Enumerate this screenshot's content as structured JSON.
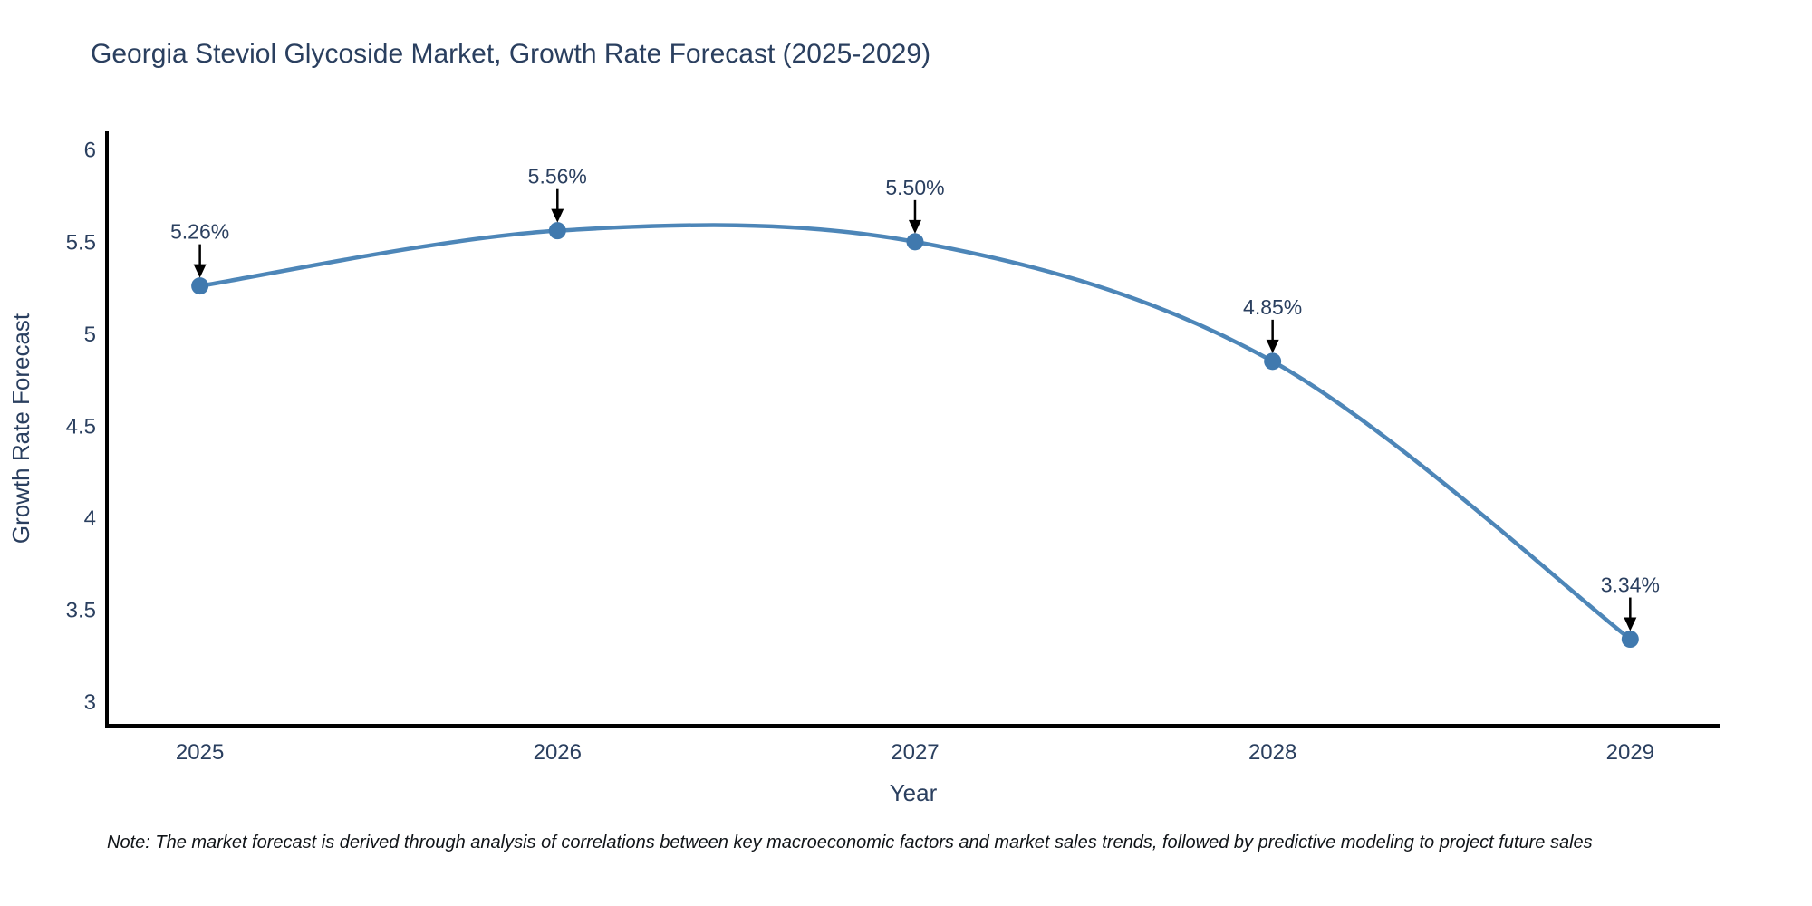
{
  "header": {
    "title": "Georgia Steviol Glycoside Market, Growth Rate Forecast (2025-2029)"
  },
  "footer": {
    "note": "Note: The market forecast is derived through analysis of correlations between key macroeconomic factors and market sales trends, followed by predictive modeling to project future sales"
  },
  "chart_data": {
    "type": "line",
    "title": "Georgia Steviol Glycoside Market, Growth Rate Forecast (2025-2029)",
    "xlabel": "Year",
    "ylabel": "Growth Rate Forecast",
    "x": [
      2025,
      2026,
      2027,
      2028,
      2029
    ],
    "y": [
      5.26,
      5.56,
      5.5,
      4.85,
      3.34
    ],
    "point_labels": [
      "5.26%",
      "5.56%",
      "5.50%",
      "4.85%",
      "3.34%"
    ],
    "xtick_labels": [
      "2025",
      "2026",
      "2027",
      "2028",
      "2029"
    ],
    "yticks": [
      3,
      3.5,
      4,
      4.5,
      5,
      5.5,
      6
    ],
    "ytick_labels": [
      "3",
      "3.5",
      "4",
      "4.5",
      "5",
      "5.5",
      "6"
    ],
    "xlim": [
      2024.74,
      2029.25
    ],
    "ylim": [
      2.87,
      6.1
    ],
    "line_shape": "spline",
    "grid": false,
    "legend": false,
    "colors": {
      "line": "#4d86b8",
      "marker": "#4079ae",
      "axis": "#000000",
      "labels": "#2a3f5f",
      "annotation_arrow": "#000000"
    }
  }
}
